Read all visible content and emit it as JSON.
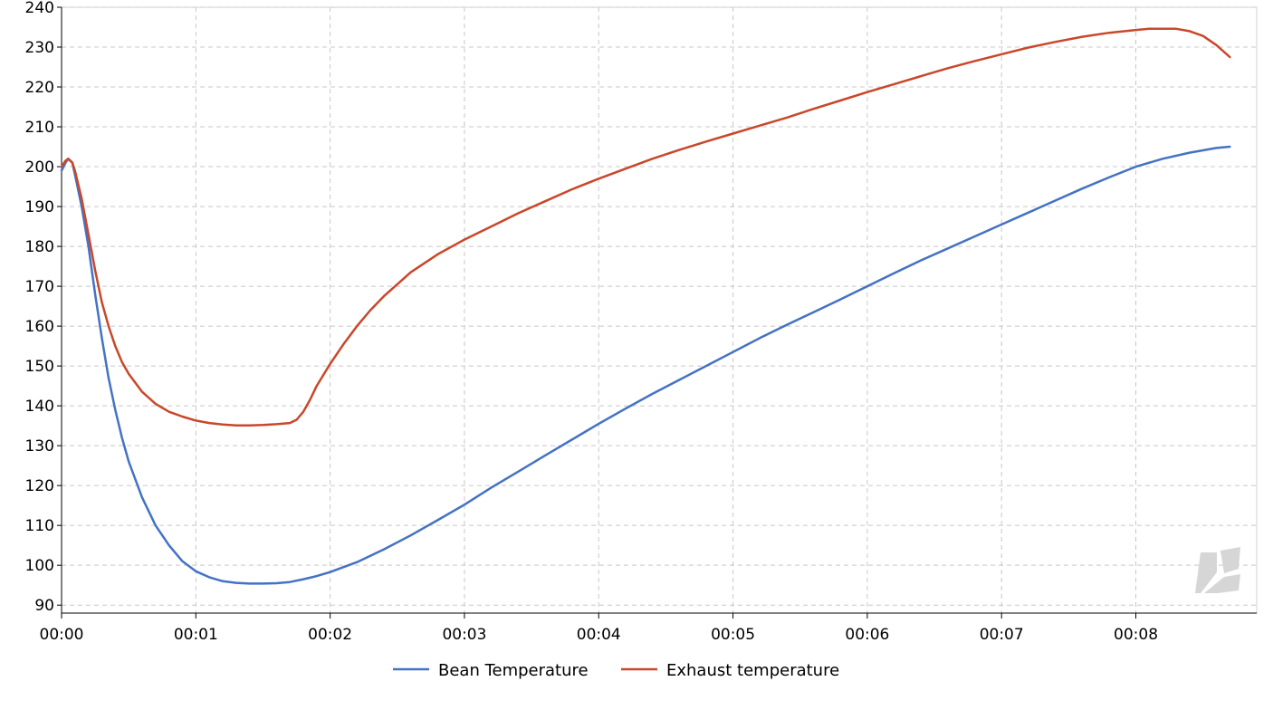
{
  "chart_data": {
    "type": "line",
    "title": "",
    "xlabel": "",
    "ylabel": "",
    "x_unit": "minutes",
    "xlim": [
      0,
      8.9
    ],
    "ylim": [
      88,
      240
    ],
    "x_ticks": [
      0,
      1,
      2,
      3,
      4,
      5,
      6,
      7,
      8
    ],
    "x_tick_labels": [
      "00:00",
      "00:01",
      "00:02",
      "00:03",
      "00:04",
      "00:05",
      "00:06",
      "00:07",
      "00:08"
    ],
    "y_ticks": [
      90,
      100,
      110,
      120,
      130,
      140,
      150,
      160,
      170,
      180,
      190,
      200,
      210,
      220,
      230,
      240
    ],
    "y_tick_labels": [
      "90",
      "100",
      "110",
      "120",
      "130",
      "140",
      "150",
      "160",
      "170",
      "180",
      "190",
      "200",
      "210",
      "220",
      "230",
      "240"
    ],
    "grid": true,
    "legend_position": "bottom-center",
    "series": [
      {
        "name": "Bean Temperature",
        "color": "#4472c4",
        "points": [
          [
            0,
            199
          ],
          [
            0.03,
            201
          ],
          [
            0.05,
            202
          ],
          [
            0.08,
            201
          ],
          [
            0.1,
            198
          ],
          [
            0.15,
            190
          ],
          [
            0.2,
            180
          ],
          [
            0.25,
            168
          ],
          [
            0.3,
            157
          ],
          [
            0.35,
            147
          ],
          [
            0.4,
            139
          ],
          [
            0.45,
            132
          ],
          [
            0.5,
            126
          ],
          [
            0.6,
            117
          ],
          [
            0.7,
            110
          ],
          [
            0.8,
            105
          ],
          [
            0.9,
            101
          ],
          [
            1.0,
            98.5
          ],
          [
            1.1,
            97
          ],
          [
            1.2,
            96
          ],
          [
            1.3,
            95.6
          ],
          [
            1.4,
            95.4
          ],
          [
            1.5,
            95.4
          ],
          [
            1.6,
            95.5
          ],
          [
            1.7,
            95.8
          ],
          [
            1.8,
            96.5
          ],
          [
            1.9,
            97.3
          ],
          [
            2.0,
            98.3
          ],
          [
            2.2,
            100.8
          ],
          [
            2.4,
            104
          ],
          [
            2.6,
            107.5
          ],
          [
            2.8,
            111.3
          ],
          [
            3.0,
            115.2
          ],
          [
            3.2,
            119.5
          ],
          [
            3.4,
            123.5
          ],
          [
            3.6,
            127.5
          ],
          [
            3.8,
            131.5
          ],
          [
            4.0,
            135.5
          ],
          [
            4.2,
            139.3
          ],
          [
            4.4,
            143
          ],
          [
            4.6,
            146.5
          ],
          [
            4.8,
            150
          ],
          [
            5.0,
            153.5
          ],
          [
            5.2,
            157
          ],
          [
            5.4,
            160.3
          ],
          [
            5.6,
            163.5
          ],
          [
            5.8,
            166.7
          ],
          [
            6.0,
            170
          ],
          [
            6.2,
            173.3
          ],
          [
            6.4,
            176.5
          ],
          [
            6.6,
            179.5
          ],
          [
            6.8,
            182.5
          ],
          [
            7.0,
            185.5
          ],
          [
            7.2,
            188.5
          ],
          [
            7.4,
            191.5
          ],
          [
            7.6,
            194.5
          ],
          [
            7.8,
            197.3
          ],
          [
            8.0,
            200
          ],
          [
            8.2,
            202
          ],
          [
            8.4,
            203.5
          ],
          [
            8.6,
            204.7
          ],
          [
            8.7,
            205
          ]
        ]
      },
      {
        "name": "Exhaust temperature",
        "color": "#c9472a",
        "points": [
          [
            0,
            200
          ],
          [
            0.03,
            201.5
          ],
          [
            0.05,
            202
          ],
          [
            0.08,
            201
          ],
          [
            0.1,
            199
          ],
          [
            0.15,
            192
          ],
          [
            0.2,
            183
          ],
          [
            0.25,
            174
          ],
          [
            0.3,
            166
          ],
          [
            0.35,
            160
          ],
          [
            0.4,
            155
          ],
          [
            0.45,
            151
          ],
          [
            0.5,
            148
          ],
          [
            0.6,
            143.5
          ],
          [
            0.7,
            140.5
          ],
          [
            0.8,
            138.5
          ],
          [
            0.9,
            137.3
          ],
          [
            1.0,
            136.3
          ],
          [
            1.1,
            135.7
          ],
          [
            1.2,
            135.3
          ],
          [
            1.3,
            135.1
          ],
          [
            1.4,
            135.1
          ],
          [
            1.5,
            135.2
          ],
          [
            1.6,
            135.4
          ],
          [
            1.7,
            135.7
          ],
          [
            1.75,
            136.5
          ],
          [
            1.8,
            138.5
          ],
          [
            1.85,
            141.5
          ],
          [
            1.9,
            145
          ],
          [
            2.0,
            150.5
          ],
          [
            2.1,
            155.5
          ],
          [
            2.2,
            160
          ],
          [
            2.3,
            164
          ],
          [
            2.4,
            167.5
          ],
          [
            2.5,
            170.5
          ],
          [
            2.6,
            173.5
          ],
          [
            2.8,
            178
          ],
          [
            3.0,
            181.7
          ],
          [
            3.2,
            185
          ],
          [
            3.4,
            188.3
          ],
          [
            3.6,
            191.3
          ],
          [
            3.8,
            194.3
          ],
          [
            4.0,
            197
          ],
          [
            4.2,
            199.5
          ],
          [
            4.4,
            202
          ],
          [
            4.6,
            204.2
          ],
          [
            4.8,
            206.3
          ],
          [
            5.0,
            208.3
          ],
          [
            5.2,
            210.3
          ],
          [
            5.4,
            212.3
          ],
          [
            5.6,
            214.5
          ],
          [
            5.8,
            216.6
          ],
          [
            6.0,
            218.7
          ],
          [
            6.2,
            220.7
          ],
          [
            6.4,
            222.7
          ],
          [
            6.6,
            224.7
          ],
          [
            6.8,
            226.5
          ],
          [
            7.0,
            228.2
          ],
          [
            7.2,
            229.9
          ],
          [
            7.4,
            231.3
          ],
          [
            7.6,
            232.6
          ],
          [
            7.8,
            233.6
          ],
          [
            8.0,
            234.3
          ],
          [
            8.1,
            234.6
          ],
          [
            8.3,
            234.6
          ],
          [
            8.4,
            234
          ],
          [
            8.5,
            232.8
          ],
          [
            8.6,
            230.5
          ],
          [
            8.7,
            227.5
          ]
        ]
      }
    ]
  }
}
